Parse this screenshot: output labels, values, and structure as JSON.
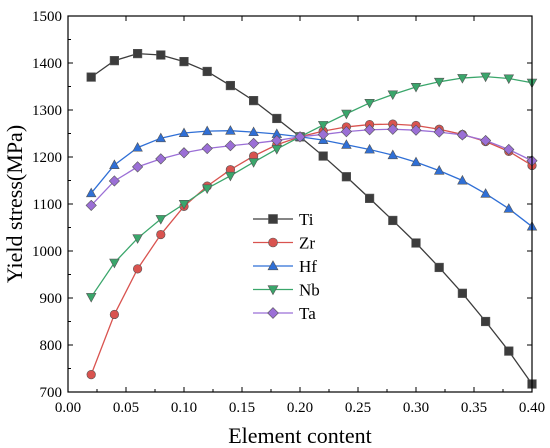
{
  "chart_data": {
    "type": "line",
    "xlabel": "Element content",
    "ylabel": "Yield stress(MPa)",
    "xlim": [
      0.0,
      0.4
    ],
    "ylim": [
      700,
      1500
    ],
    "xticks": [
      "0.00",
      "0.05",
      "0.10",
      "0.15",
      "0.20",
      "0.25",
      "0.30",
      "0.35",
      "0.40"
    ],
    "yticks": [
      "700",
      "800",
      "900",
      "1000",
      "1100",
      "1200",
      "1300",
      "1400",
      "1500"
    ],
    "grid": false,
    "legend_position": "center",
    "x": [
      0.02,
      0.04,
      0.06,
      0.08,
      0.1,
      0.12,
      0.14,
      0.16,
      0.18,
      0.2,
      0.22,
      0.24,
      0.26,
      0.28,
      0.3,
      0.32,
      0.34,
      0.36,
      0.38,
      0.4
    ],
    "series": [
      {
        "name": "Ti",
        "marker": "square",
        "color": "#3c3c3c",
        "values": [
          1370,
          1405,
          1420,
          1417,
          1403,
          1382,
          1352,
          1320,
          1282,
          1243,
          1202,
          1158,
          1112,
          1065,
          1017,
          965,
          910,
          850,
          787,
          717
        ]
      },
      {
        "name": "Zr",
        "marker": "circle",
        "color": "#d9534f",
        "values": [
          737,
          865,
          962,
          1035,
          1095,
          1138,
          1173,
          1202,
          1226,
          1243,
          1255,
          1264,
          1269,
          1270,
          1267,
          1259,
          1248,
          1233,
          1212,
          1182
        ]
      },
      {
        "name": "Hf",
        "marker": "triangle-up",
        "color": "#2f6fd6",
        "values": [
          1123,
          1183,
          1220,
          1240,
          1251,
          1255,
          1256,
          1253,
          1249,
          1243,
          1236,
          1226,
          1216,
          1204,
          1189,
          1171,
          1150,
          1122,
          1090,
          1052
        ]
      },
      {
        "name": "Nb",
        "marker": "triangle-down",
        "color": "#3aa66b",
        "values": [
          902,
          975,
          1027,
          1068,
          1100,
          1133,
          1160,
          1189,
          1217,
          1243,
          1268,
          1292,
          1315,
          1333,
          1349,
          1360,
          1368,
          1371,
          1367,
          1358
        ]
      },
      {
        "name": "Ta",
        "marker": "diamond",
        "color": "#9b6fd6",
        "values": [
          1097,
          1149,
          1179,
          1196,
          1209,
          1218,
          1224,
          1229,
          1235,
          1243,
          1248,
          1254,
          1258,
          1259,
          1257,
          1253,
          1247,
          1235,
          1216,
          1192
        ]
      }
    ]
  }
}
